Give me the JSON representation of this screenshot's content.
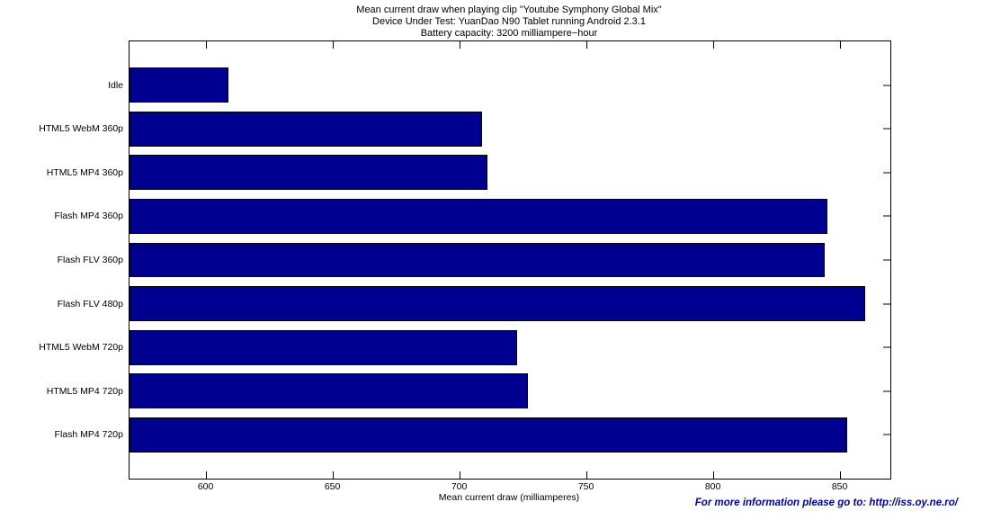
{
  "chart_data": {
    "type": "bar",
    "orientation": "horizontal",
    "title_lines": [
      "Mean current draw when playing clip \"Youtube Symphony Global Mix\"",
      "Device Under Test: YuanDao N90 Tablet running Android 2.3.1",
      "Battery capacity: 3200 milliampere−hour"
    ],
    "categories": [
      "Idle",
      "HTML5 WebM 360p",
      "HTML5 MP4 360p",
      "Flash MP4 360p",
      "Flash FLV 360p",
      "Flash FLV 480p",
      "HTML5 WebM 720p",
      "HTML5 MP4 720p",
      "Flash MP4 720p"
    ],
    "values": [
      609,
      709,
      711,
      845,
      844,
      860,
      723,
      727,
      853
    ],
    "xlabel": "Mean current draw (milliamperes)",
    "xlim": [
      570,
      870
    ],
    "xticks": [
      600,
      650,
      700,
      750,
      800,
      850
    ],
    "grid": false,
    "legend": "none",
    "bar_color": "#000090",
    "bar_edge_color": "#000000",
    "axis_color": "#000000"
  },
  "footer": {
    "text": "For more information please go to: http://iss.oy.ne.ro/",
    "color": "#0000A0"
  }
}
